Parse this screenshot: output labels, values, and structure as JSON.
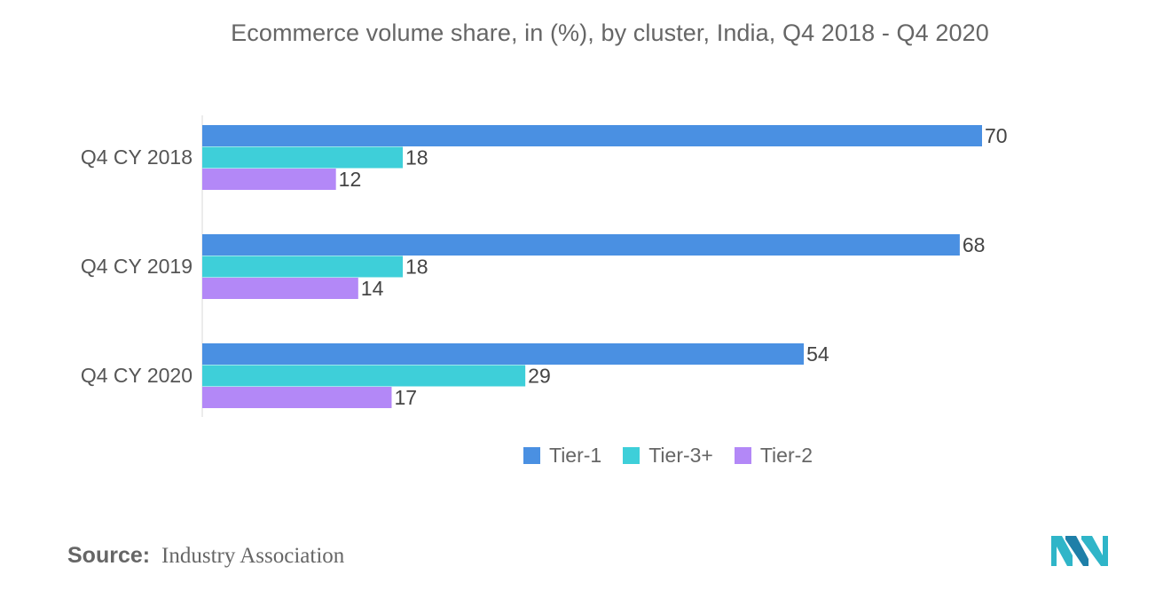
{
  "chart_data": {
    "type": "bar",
    "orientation": "horizontal",
    "title": "Ecommerce volume share, in (%),  by cluster, India, Q4 2018 - Q4 2020",
    "categories": [
      "Q4 CY 2018",
      "Q4 CY 2019",
      "Q4 CY 2020"
    ],
    "series": [
      {
        "name": "Tier-1",
        "color": "#4a90e2",
        "values": [
          70,
          68,
          54
        ]
      },
      {
        "name": "Tier-3+",
        "color": "#3ecfd9",
        "values": [
          18,
          18,
          29
        ]
      },
      {
        "name": "Tier-2",
        "color": "#b388f7",
        "values": [
          12,
          14,
          17
        ]
      }
    ],
    "xlabel": "",
    "ylabel": "",
    "xlim": [
      0,
      70
    ],
    "grid": false,
    "legend_position": "bottom-center"
  },
  "source": {
    "label": "Source:",
    "value": "Industry Association"
  },
  "logo": {
    "icon": "mordor-intelligence-logo-icon",
    "color": "#2fb5c8"
  }
}
